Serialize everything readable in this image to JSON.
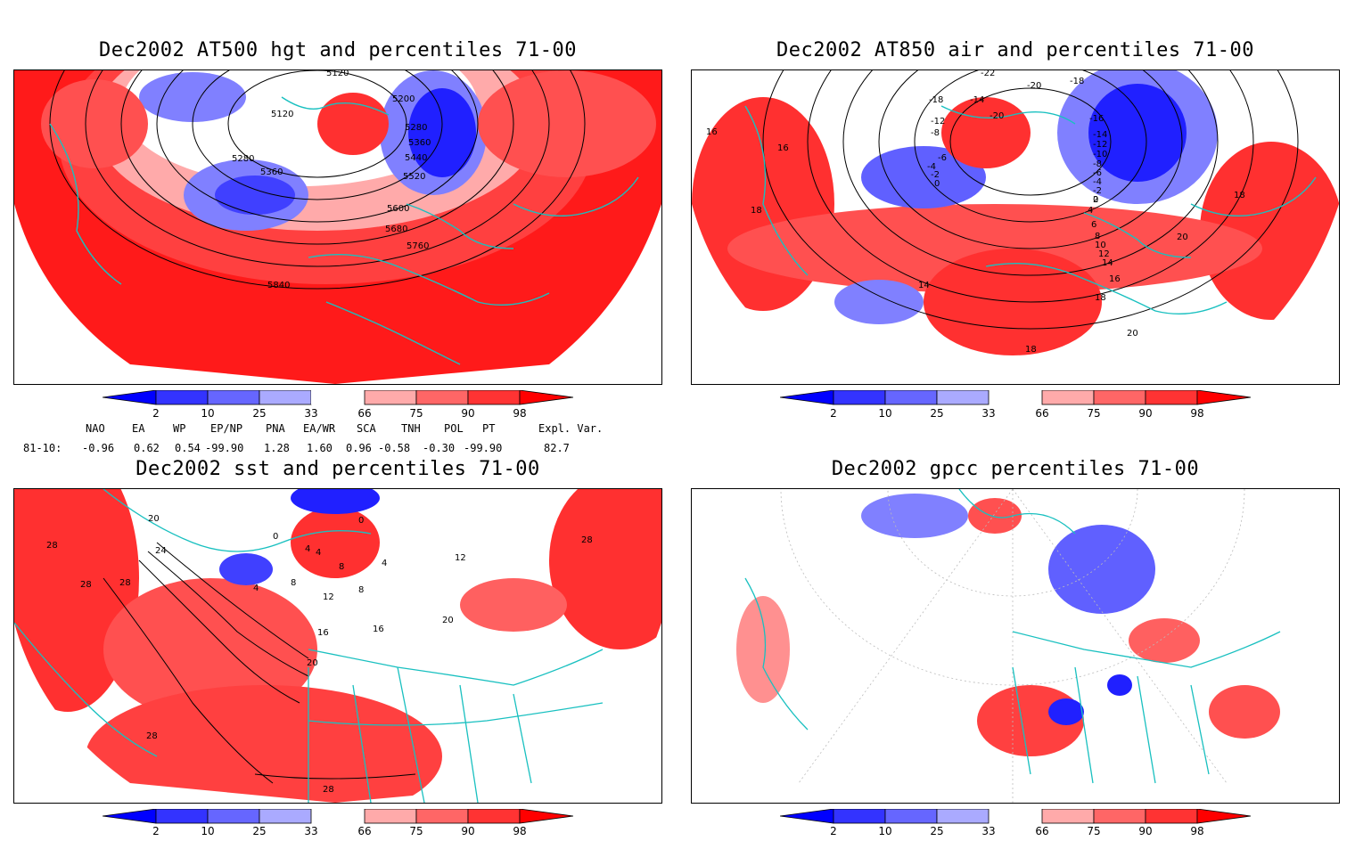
{
  "panels": [
    {
      "title": "Dec2002 AT500 hgt and percentiles 71-00",
      "contour_labels": [
        "5120",
        "5200",
        "5120",
        "5280",
        "5360",
        "5280",
        "5360",
        "5440",
        "5520",
        "5600",
        "5680",
        "5760",
        "5840"
      ]
    },
    {
      "title": "Dec2002 AT850 air and percentiles 71-00",
      "contour_labels": [
        "-22",
        "-18",
        "-20",
        "-18",
        "-14",
        "-16",
        "-12",
        "-20",
        "-8",
        "-14",
        "-12",
        "-10",
        "-6",
        "-4",
        "-2",
        "0",
        "-8",
        "-6",
        "-4",
        "-2",
        "0",
        "2",
        "4",
        "6",
        "8",
        "10",
        "12",
        "14",
        "16",
        "18",
        "20",
        "16",
        "16",
        "18",
        "18",
        "14",
        "18",
        "20"
      ]
    },
    {
      "title": "Dec2002 sst and percentiles 71-00",
      "contour_labels": [
        "20",
        "28",
        "24",
        "28",
        "28",
        "0",
        "0",
        "4",
        "4",
        "8",
        "8",
        "4",
        "12",
        "16",
        "20",
        "16",
        "20",
        "12",
        "8",
        "28",
        "28",
        "4",
        "28"
      ]
    },
    {
      "title": "Dec2002 gpcc percentiles 71-00",
      "contour_labels": []
    }
  ],
  "colorbar": {
    "tick_labels": [
      "2",
      "10",
      "25",
      "33",
      "66",
      "75",
      "90",
      "98"
    ],
    "colors": [
      "#0000ff",
      "#3333ff",
      "#6666ff",
      "#aaaaff",
      "#ffffff",
      "#ffaaaa",
      "#ff6666",
      "#ff3333",
      "#ff0000"
    ]
  },
  "indices": {
    "headers": [
      "NAO",
      "EA",
      "WP",
      "EP/NP",
      "PNA",
      "EA/WR",
      "SCA",
      "TNH",
      "POL",
      "PT",
      "Expl. Var."
    ],
    "row_label": "81-10:",
    "values": [
      "-0.96",
      "0.62",
      "0.54",
      "-99.90",
      "1.28",
      "1.60",
      "0.96",
      "-0.58",
      "-0.30",
      "-99.90",
      "82.7"
    ]
  },
  "colors": {
    "coast": "#19c0c0",
    "warm": "#ff3030",
    "cold": "#3a3aff",
    "contour": "#000000"
  }
}
